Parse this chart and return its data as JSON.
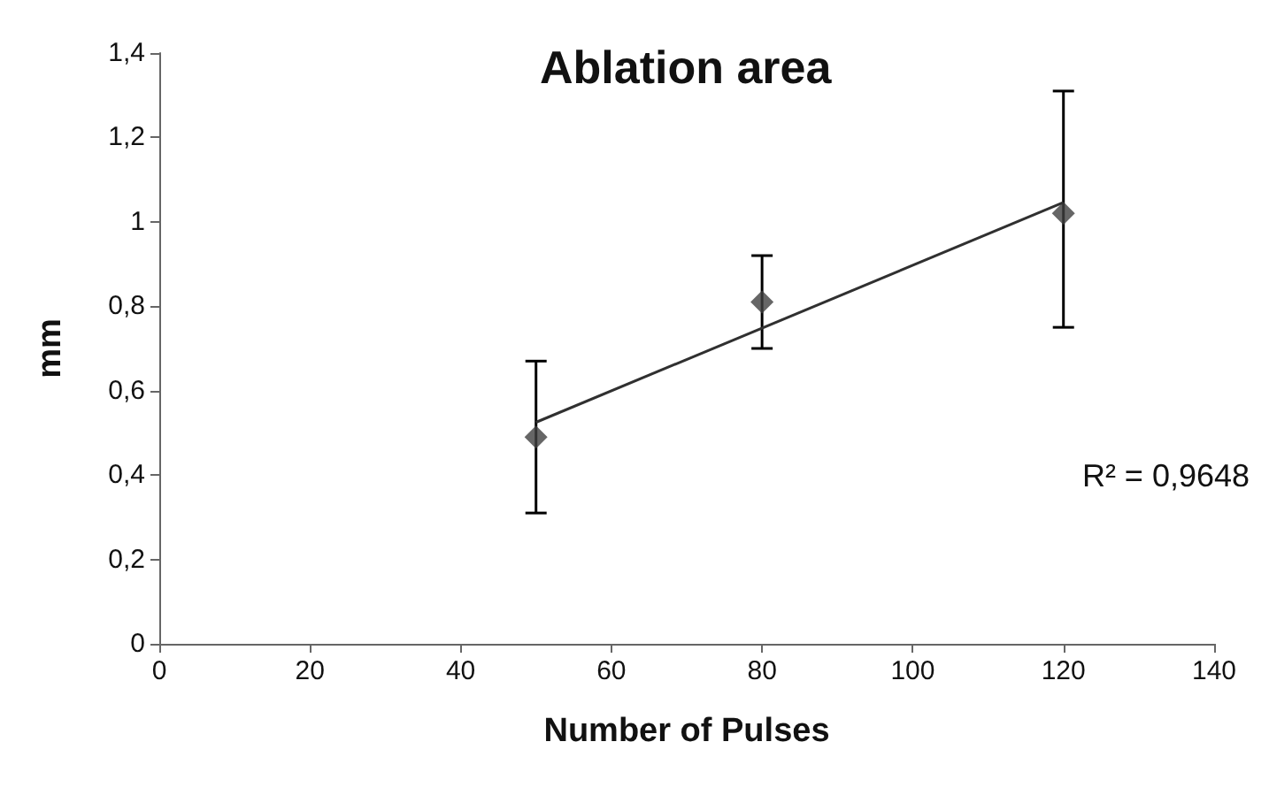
{
  "chart_data": {
    "type": "scatter",
    "title": "Ablation area",
    "xlabel": "Number of Pulses",
    "ylabel": "mm",
    "x": [
      50,
      80,
      120
    ],
    "series": [
      {
        "color": "#404040",
        "values": [
          0.49,
          0.81,
          1.02
        ],
        "errors": [
          [
            0.31,
            0.67
          ],
          [
            0.7,
            0.92
          ],
          [
            0.75,
            1.31
          ]
        ],
        "marker": "diamond"
      },
      {
        "type": "line",
        "color": "#303030",
        "x": [
          50,
          120
        ],
        "values": [
          0.525,
          1.046
        ],
        "marker": "none",
        "line_style": "solid"
      }
    ],
    "xlim": [
      0,
      140
    ],
    "xticks": [
      0,
      20,
      40,
      60,
      80,
      100,
      120,
      140
    ],
    "ylim": [
      0,
      1.4
    ],
    "yticks": [
      {
        "value": 0,
        "label": "0"
      },
      {
        "value": 0.2,
        "label": "0,2"
      },
      {
        "value": 0.4,
        "label": "0,4"
      },
      {
        "value": 0.6,
        "label": "0,6"
      },
      {
        "value": 0.8,
        "label": "0,8"
      },
      {
        "value": 1,
        "label": "1"
      },
      {
        "value": 1.2,
        "label": "1,2"
      },
      {
        "value": 1.4,
        "label": "1,4"
      }
    ],
    "annotations": [
      "R² = 0,9648"
    ]
  }
}
